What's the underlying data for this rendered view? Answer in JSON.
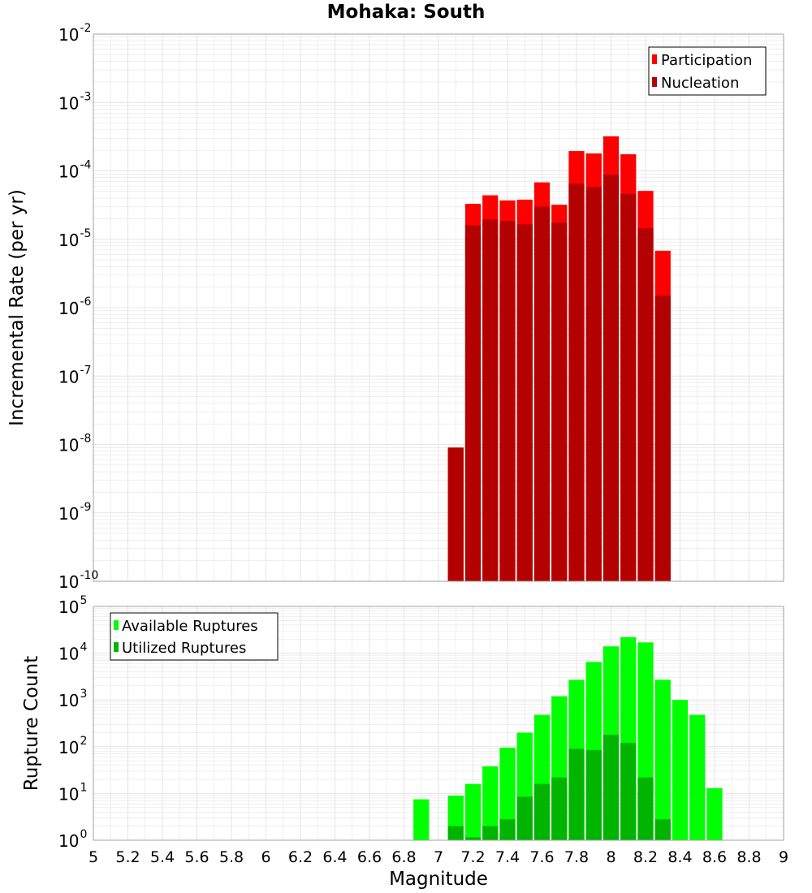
{
  "title": "Mohaka: South",
  "colors": {
    "participation": "#ff0000",
    "nucleation": "#b30000",
    "available": "#00ff00",
    "utilized": "#00b400",
    "grid": "#e4e4e4",
    "plot_border": "#a0a0a0"
  },
  "chart_data": [
    {
      "type": "bar",
      "name": "rate-chart",
      "title": "Mohaka: South",
      "ylabel": "Incremental Rate (per yr)",
      "yscale": "log",
      "ylim_exp": [
        -10,
        -2
      ],
      "ytick_exps": [
        -10,
        -9,
        -8,
        -7,
        -6,
        -5,
        -4,
        -3,
        -2
      ],
      "xlim": [
        5,
        9
      ],
      "bin_width": 0.1,
      "legend": [
        "Participation",
        "Nucleation"
      ],
      "legend_position": "top-right",
      "series": [
        {
          "name": "Participation",
          "x": [
            7.1,
            7.2,
            7.3,
            7.4,
            7.5,
            7.6,
            7.7,
            7.8,
            7.9,
            8.0,
            8.1,
            8.2,
            8.3
          ],
          "values": [
            9e-09,
            3.3e-05,
            4.4e-05,
            3.7e-05,
            3.8e-05,
            6.8e-05,
            3.2e-05,
            0.000195,
            0.00018,
            0.00032,
            0.000175,
            5.1e-05,
            6.8e-06
          ]
        },
        {
          "name": "Nucleation",
          "x": [
            7.1,
            7.2,
            7.3,
            7.4,
            7.5,
            7.6,
            7.7,
            7.8,
            7.9,
            8.0,
            8.1,
            8.2,
            8.3
          ],
          "values": [
            9e-09,
            1.6e-05,
            1.95e-05,
            1.85e-05,
            1.65e-05,
            3e-05,
            1.75e-05,
            6.5e-05,
            5.8e-05,
            8.8e-05,
            4.6e-05,
            1.45e-05,
            1.5e-06
          ]
        }
      ]
    },
    {
      "type": "bar",
      "name": "count-chart",
      "xlabel": "Magnitude",
      "ylabel": "Rupture Count",
      "yscale": "log",
      "ylim_exp": [
        0,
        5
      ],
      "ytick_exps": [
        0,
        1,
        2,
        3,
        4,
        5
      ],
      "xlim": [
        5,
        9
      ],
      "bin_width": 0.1,
      "xticks": [
        5,
        5.2,
        5.4,
        5.6,
        5.8,
        6,
        6.2,
        6.4,
        6.6,
        6.8,
        7,
        7.2,
        7.4,
        7.6,
        7.8,
        8,
        8.2,
        8.4,
        8.6,
        8.8,
        9
      ],
      "legend": [
        "Available Ruptures",
        "Utilized Ruptures"
      ],
      "legend_position": "top-left",
      "series": [
        {
          "name": "Available Ruptures",
          "x": [
            6.9,
            7.1,
            7.2,
            7.3,
            7.4,
            7.5,
            7.6,
            7.7,
            7.8,
            7.9,
            8.0,
            8.1,
            8.2,
            8.3,
            8.4,
            8.5,
            8.6
          ],
          "values": [
            7.5,
            9,
            16,
            38,
            95,
            200,
            480,
            1200,
            2700,
            6500,
            14000,
            22000,
            17000,
            2700,
            1000,
            480,
            13
          ]
        },
        {
          "name": "Utilized Ruptures",
          "x": [
            7.1,
            7.2,
            7.3,
            7.4,
            7.5,
            7.6,
            7.7,
            7.8,
            7.9,
            8.0,
            8.1,
            8.2,
            8.3
          ],
          "values": [
            2,
            1.15,
            2,
            2.8,
            8.5,
            16,
            22,
            90,
            85,
            180,
            120,
            22,
            2.8
          ]
        }
      ]
    }
  ]
}
